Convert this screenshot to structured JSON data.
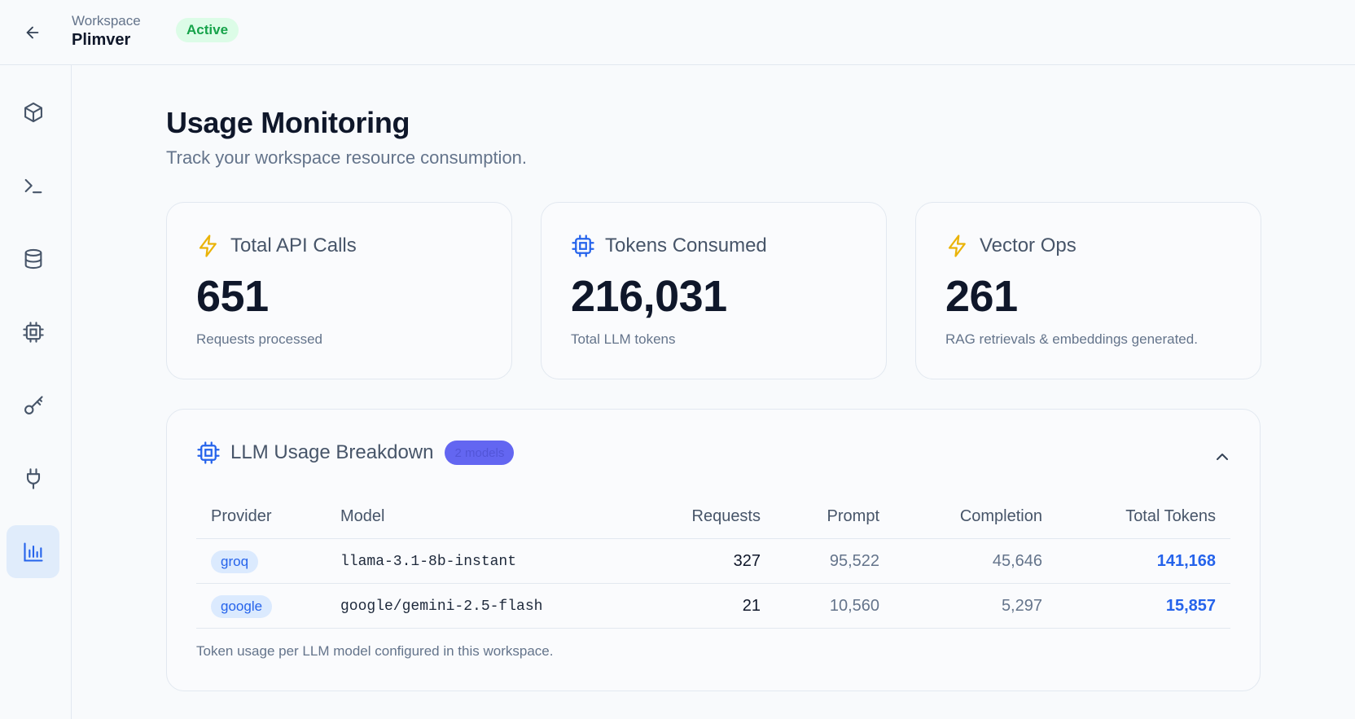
{
  "header": {
    "workspace_label": "Workspace",
    "workspace_name": "Plimver",
    "status": "Active"
  },
  "sidebar": {
    "items": [
      {
        "icon": "cube-icon",
        "active": false
      },
      {
        "icon": "terminal-icon",
        "active": false
      },
      {
        "icon": "database-icon",
        "active": false
      },
      {
        "icon": "chip-icon",
        "active": false
      },
      {
        "icon": "key-icon",
        "active": false
      },
      {
        "icon": "plug-icon",
        "active": false
      },
      {
        "icon": "bar-chart-icon",
        "active": true
      }
    ]
  },
  "page": {
    "title": "Usage Monitoring",
    "subtitle": "Track your workspace resource consumption."
  },
  "cards": [
    {
      "icon": "lightning-icon",
      "title": "Total API Calls",
      "value": "651",
      "caption": "Requests processed"
    },
    {
      "icon": "chip-icon",
      "title": "Tokens Consumed",
      "value": "216,031",
      "caption": "Total LLM tokens"
    },
    {
      "icon": "lightning-icon",
      "title": "Vector Ops",
      "value": "261",
      "caption": "RAG retrievals & embeddings generated."
    }
  ],
  "breakdown": {
    "title": "LLM Usage Breakdown",
    "badge": "2 models",
    "columns": [
      "Provider",
      "Model",
      "Requests",
      "Prompt",
      "Completion",
      "Total Tokens"
    ],
    "rows": [
      {
        "provider": "groq",
        "model": "llama-3.1-8b-instant",
        "requests": "327",
        "prompt": "95,522",
        "completion": "45,646",
        "total": "141,168"
      },
      {
        "provider": "google",
        "model": "google/gemini-2.5-flash",
        "requests": "21",
        "prompt": "10,560",
        "completion": "5,297",
        "total": "15,857"
      }
    ],
    "footer": "Token usage per LLM model configured in this workspace."
  },
  "colors": {
    "accent": "#2563eb",
    "success": "#16a34a",
    "badge": "#6366f1",
    "warning_icon": "#eab308"
  }
}
